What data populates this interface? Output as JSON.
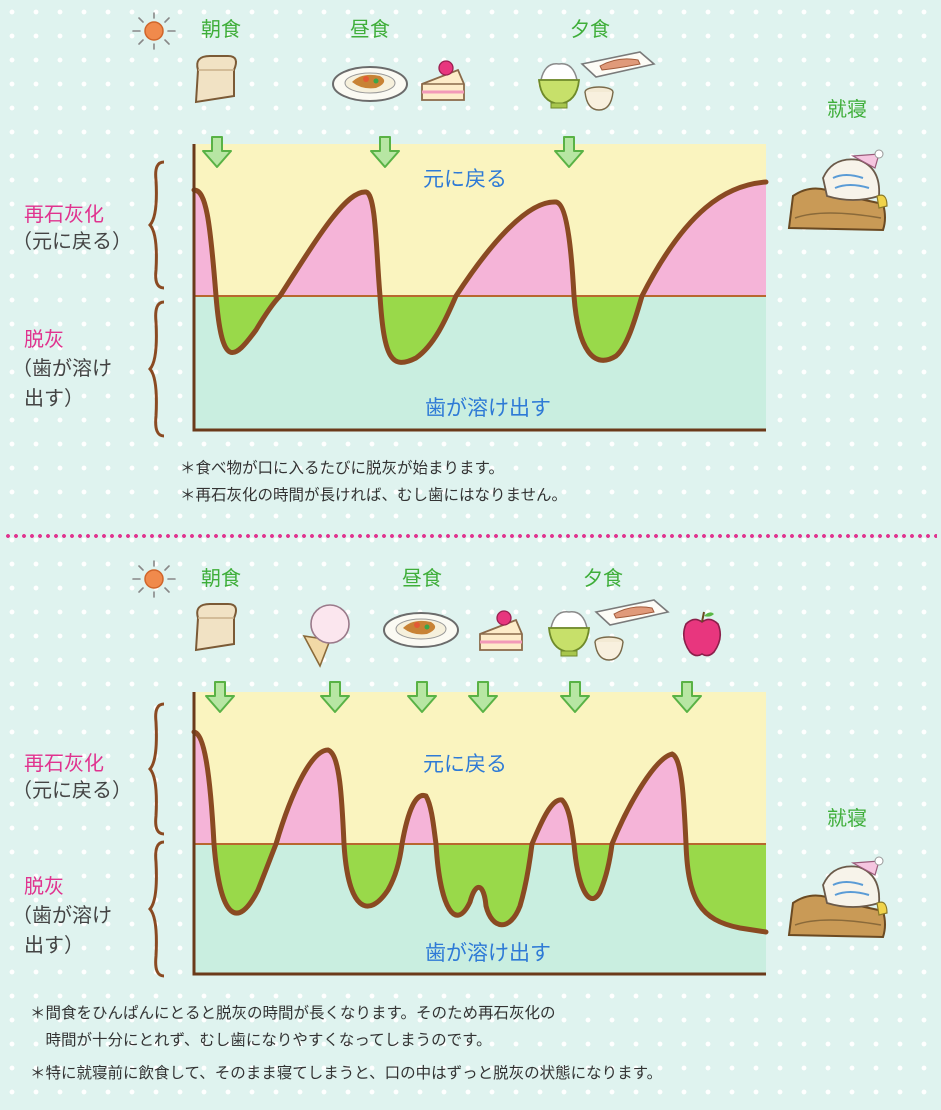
{
  "top": {
    "meals": {
      "breakfast": "朝食",
      "lunch": "昼食",
      "dinner": "夕食"
    },
    "bedtime": "就寝",
    "remin_label": "再石灰化",
    "remin_sub": "（元に戻る）",
    "demin_label": "脱灰",
    "demin_sub1": "（歯が溶け",
    "demin_sub2": "出す）",
    "top_zone": "元に戻る",
    "bottom_zone": "歯が溶け出す",
    "notes": [
      "＊食べ物が口に入るたびに脱灰が始まります。",
      "＊再石灰化の時間が長ければ、むし歯にはなりません。"
    ]
  },
  "bottom": {
    "meals": {
      "breakfast": "朝食",
      "lunch": "昼食",
      "dinner": "夕食"
    },
    "bedtime": "就寝",
    "remin_label": "再石灰化",
    "remin_sub": "（元に戻る）",
    "demin_label": "脱灰",
    "demin_sub1": "（歯が溶け",
    "demin_sub2": "出す）",
    "top_zone": "元に戻る",
    "bottom_zone": "歯が溶け出す",
    "notes": [
      "＊間食をひんぱんにとると脱灰の時間が長くなります。そのため再石灰化の",
      "　時間が十分にとれず、むし歯になりやすくなってしまうのです。",
      "＊特に就寝前に飲食して、そのまま寝てしまうと、口の中はずっと脱灰の状態になります。"
    ]
  },
  "colors": {
    "top_zone": "#faf4bf",
    "bottom_zone": "#c9eee0",
    "remin_fill": "#f5b4d8",
    "demin_fill": "#99d94a",
    "curve": "#8a4a22",
    "label_magenta": "#e0338f",
    "meal_green": "#3fae3a",
    "zone_blue": "#2e7ad6"
  },
  "icons": [
    "sun-icon",
    "toast-icon",
    "curry-plate-icon",
    "cake-icon",
    "rice-bowl-icon",
    "fish-tray-icon",
    "soup-bowl-icon",
    "ice-cream-icon",
    "apple-icon",
    "sleeping-in-bed-icon",
    "down-arrow-icon",
    "brace-icon"
  ]
}
